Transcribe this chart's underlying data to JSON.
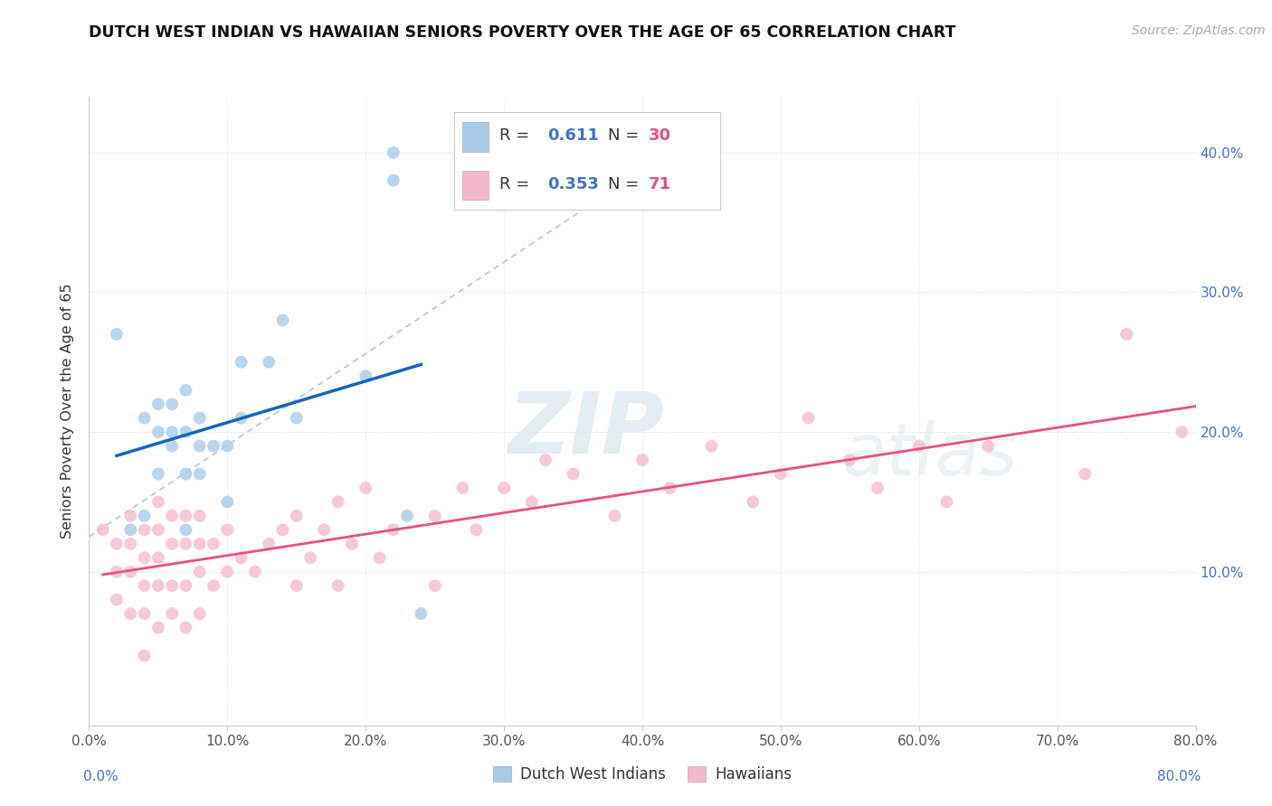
{
  "title": "DUTCH WEST INDIAN VS HAWAIIAN SENIORS POVERTY OVER THE AGE OF 65 CORRELATION CHART",
  "source_text": "Source: ZipAtlas.com",
  "ylabel": "Seniors Poverty Over the Age of 65",
  "xmin": 0.0,
  "xmax": 0.8,
  "ymin": -0.01,
  "ymax": 0.44,
  "xticks": [
    0.0,
    0.1,
    0.2,
    0.3,
    0.4,
    0.5,
    0.6,
    0.7,
    0.8
  ],
  "yticks": [
    0.1,
    0.2,
    0.3,
    0.4
  ],
  "xtick_labels": [
    "0.0%",
    "10.0%",
    "20.0%",
    "30.0%",
    "40.0%",
    "50.0%",
    "60.0%",
    "70.0%",
    "80.0%"
  ],
  "ytick_right_labels": [
    "10.0%",
    "20.0%",
    "30.0%",
    "40.0%"
  ],
  "R1": "0.611",
  "N1": "30",
  "R2": "0.353",
  "N2": "71",
  "blue_scatter": "#a8cce8",
  "pink_scatter": "#f5b8cc",
  "blue_line": "#1565c0",
  "pink_line": "#e8527a",
  "dashed_line": "#9ab8d8",
  "label_color": "#4472c4",
  "legend1_label": "Dutch West Indians",
  "legend2_label": "Hawaiians",
  "dutch_x": [
    0.02,
    0.03,
    0.04,
    0.04,
    0.05,
    0.05,
    0.05,
    0.06,
    0.06,
    0.06,
    0.07,
    0.07,
    0.07,
    0.07,
    0.08,
    0.08,
    0.08,
    0.09,
    0.1,
    0.1,
    0.11,
    0.11,
    0.13,
    0.14,
    0.15,
    0.2,
    0.22,
    0.22,
    0.23,
    0.24
  ],
  "dutch_y": [
    0.27,
    0.13,
    0.14,
    0.21,
    0.17,
    0.2,
    0.22,
    0.19,
    0.2,
    0.22,
    0.13,
    0.17,
    0.2,
    0.23,
    0.17,
    0.19,
    0.21,
    0.19,
    0.15,
    0.19,
    0.21,
    0.25,
    0.25,
    0.28,
    0.21,
    0.24,
    0.38,
    0.4,
    0.14,
    0.07
  ],
  "hawaiian_x": [
    0.01,
    0.02,
    0.02,
    0.02,
    0.03,
    0.03,
    0.03,
    0.03,
    0.04,
    0.04,
    0.04,
    0.04,
    0.04,
    0.05,
    0.05,
    0.05,
    0.05,
    0.05,
    0.06,
    0.06,
    0.06,
    0.06,
    0.07,
    0.07,
    0.07,
    0.07,
    0.08,
    0.08,
    0.08,
    0.08,
    0.09,
    0.09,
    0.1,
    0.1,
    0.11,
    0.12,
    0.13,
    0.14,
    0.15,
    0.15,
    0.16,
    0.17,
    0.18,
    0.18,
    0.19,
    0.2,
    0.21,
    0.22,
    0.25,
    0.25,
    0.27,
    0.28,
    0.3,
    0.32,
    0.33,
    0.35,
    0.38,
    0.4,
    0.42,
    0.45,
    0.48,
    0.5,
    0.52,
    0.55,
    0.57,
    0.6,
    0.62,
    0.65,
    0.72,
    0.75,
    0.79
  ],
  "hawaiian_y": [
    0.13,
    0.08,
    0.1,
    0.12,
    0.07,
    0.1,
    0.12,
    0.14,
    0.04,
    0.07,
    0.09,
    0.11,
    0.13,
    0.06,
    0.09,
    0.11,
    0.13,
    0.15,
    0.07,
    0.09,
    0.12,
    0.14,
    0.06,
    0.09,
    0.12,
    0.14,
    0.07,
    0.1,
    0.12,
    0.14,
    0.09,
    0.12,
    0.1,
    0.13,
    0.11,
    0.1,
    0.12,
    0.13,
    0.09,
    0.14,
    0.11,
    0.13,
    0.09,
    0.15,
    0.12,
    0.16,
    0.11,
    0.13,
    0.09,
    0.14,
    0.16,
    0.13,
    0.16,
    0.15,
    0.18,
    0.17,
    0.14,
    0.18,
    0.16,
    0.19,
    0.15,
    0.17,
    0.21,
    0.18,
    0.16,
    0.19,
    0.15,
    0.19,
    0.17,
    0.27,
    0.2
  ],
  "watermark_zip": "ZIP",
  "watermark_atlas": "atlas"
}
